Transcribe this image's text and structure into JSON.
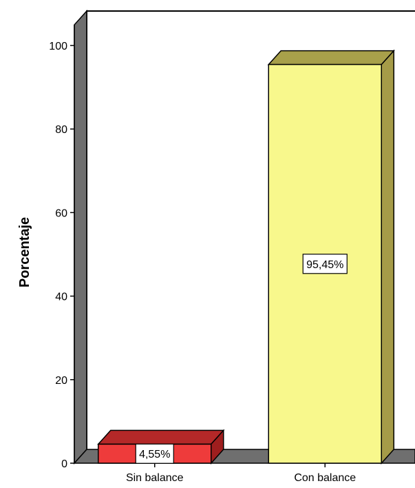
{
  "chart_data": {
    "type": "bar",
    "categories": [
      "Sin balance",
      "Con balance"
    ],
    "values": [
      4.55,
      95.45
    ],
    "data_labels": [
      "4,55%",
      "95,45%"
    ],
    "title": "",
    "xlabel": "",
    "ylabel": "Porcentaje",
    "ylim": [
      0,
      100
    ],
    "yticks": [
      0,
      20,
      40,
      60,
      80,
      100
    ],
    "ytick_labels": [
      "0",
      "20",
      "40",
      "60",
      "80",
      "100"
    ],
    "bar_colors": [
      "#ee3b3b",
      "#f8f88c"
    ],
    "bar_side_colors": [
      "#9e1e1e",
      "#a59b48"
    ],
    "bar_top_colors": [
      "#b42828",
      "#a8a04a"
    ],
    "style": "3d",
    "grid": false,
    "legend": "none"
  }
}
